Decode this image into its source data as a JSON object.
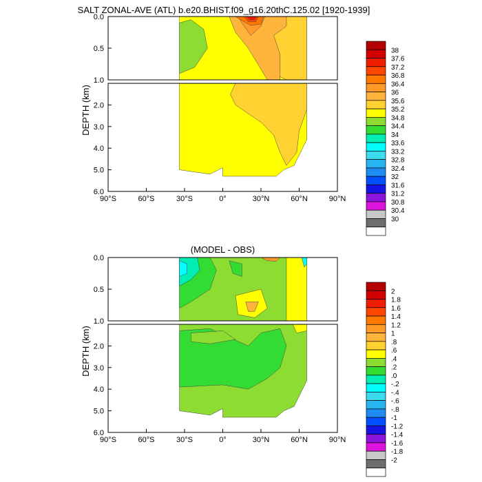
{
  "figure": {
    "title": "SALT ZONAL-AVE (ATL) b.e20.BHIST.f09_g16.20thC.125.02 [1920-1939]"
  },
  "chart_data": [
    {
      "type": "heatmap",
      "name": "model-salinity",
      "title": "SALT ZONAL-AVE (ATL) b.e20.BHIST.f09_g16.20thC.125.02 [1920-1939]",
      "xlabel": "",
      "ylabel": "DEPTH (km)",
      "xlim": [
        -90,
        90
      ],
      "x_ticks": [
        "90°S",
        "60°S",
        "30°S",
        "0°",
        "30°N",
        "60°N",
        "90°N"
      ],
      "upper_panel": {
        "ylim": [
          0.0,
          1.0
        ],
        "y_ticks": [
          "0.0",
          "0.5",
          "1.0"
        ],
        "reversed": true
      },
      "lower_panel": {
        "ylim": [
          1.0,
          6.0
        ],
        "y_ticks": [
          "2.0",
          "3.0",
          "4.0",
          "5.0",
          "6.0"
        ],
        "reversed": true
      },
      "data_extent": {
        "lat_min": -34,
        "lat_max": 66
      },
      "colorbar": {
        "labels": [
          "38",
          "37.6",
          "37.2",
          "36.8",
          "36.4",
          "36",
          "35.6",
          "35.2",
          "34.8",
          "34.4",
          "34",
          "33.6",
          "33.2",
          "32.8",
          "32.4",
          "32",
          "31.6",
          "31.2",
          "30.8",
          "30.4",
          "30"
        ],
        "colors": [
          "#b40000",
          "#d20000",
          "#f01e00",
          "#ff4600",
          "#ff7800",
          "#ff9a28",
          "#ffb43c",
          "#ffd232",
          "#ffff00",
          "#8cdc32",
          "#32dc32",
          "#00eeb4",
          "#00ffff",
          "#3cdcf0",
          "#28b4f0",
          "#1e8cf0",
          "#0050ff",
          "#1414e6",
          "#8c14dc",
          "#dc14dc",
          "#c8c8c8",
          "#6e6e6e",
          "#ffffff"
        ]
      },
      "regions": [
        {
          "level": 35.0,
          "pts": [
            [
              -34,
              0
            ],
            [
              66,
              0
            ],
            [
              66,
              1
            ],
            [
              -34,
              1
            ]
          ]
        },
        {
          "level": 34.6,
          "pts": [
            [
              -34,
              0.1
            ],
            [
              -25,
              0.05
            ],
            [
              -15,
              0.2
            ],
            [
              -12,
              0.5
            ],
            [
              -22,
              0.8
            ],
            [
              -34,
              0.9
            ]
          ]
        },
        {
          "level": 35.4,
          "pts": [
            [
              -22,
              0
            ],
            [
              20,
              0
            ],
            [
              25,
              0.4
            ],
            [
              40,
              0.9
            ],
            [
              50,
              1
            ],
            [
              66,
              1
            ],
            [
              66,
              0
            ],
            [
              -22,
              0
            ]
          ]
        },
        {
          "level": 35.8,
          "pts": [
            [
              -18,
              0
            ],
            [
              5,
              0
            ],
            [
              10,
              0.25
            ],
            [
              20,
              0.5
            ],
            [
              35,
              1
            ],
            [
              45,
              1
            ],
            [
              45,
              0.6
            ],
            [
              40,
              0.3
            ],
            [
              50,
              0.15
            ],
            [
              50,
              0
            ],
            [
              -18,
              0
            ]
          ]
        },
        {
          "level": 36.2,
          "pts": [
            [
              -12,
              0
            ],
            [
              12,
              0
            ],
            [
              15,
              0.1
            ],
            [
              22,
              0.3
            ],
            [
              30,
              0.15
            ],
            [
              33,
              0
            ],
            [
              -12,
              0
            ]
          ]
        },
        {
          "level": 36.6,
          "pts": [
            [
              10,
              0
            ],
            [
              32,
              0
            ],
            [
              30,
              0.12
            ],
            [
              22,
              0.14
            ],
            [
              14,
              0.05
            ]
          ]
        },
        {
          "level": 37.0,
          "pts": [
            [
              17,
              0
            ],
            [
              28,
              0
            ],
            [
              26,
              0.08
            ],
            [
              20,
              0.08
            ]
          ]
        },
        {
          "level": 37.4,
          "pts": [
            [
              19,
              0
            ],
            [
              26,
              0
            ],
            [
              25,
              0.05
            ],
            [
              21,
              0.05
            ]
          ]
        }
      ],
      "regions_deep": [
        {
          "level": 35.0,
          "pts": [
            [
              -34,
              1
            ],
            [
              66,
              1
            ],
            [
              66,
              3.6
            ],
            [
              56,
              4.8
            ],
            [
              48,
              5.0
            ],
            [
              42,
              5.3
            ],
            [
              0,
              5.3
            ],
            [
              0,
              4.9
            ],
            [
              -10,
              5.2
            ],
            [
              -34,
              5.0
            ]
          ]
        },
        {
          "level": 35.4,
          "pts": [
            [
              10,
              1
            ],
            [
              66,
              1
            ],
            [
              66,
              2.2
            ],
            [
              60,
              3.2
            ],
            [
              58,
              4.2
            ],
            [
              50,
              4.8
            ],
            [
              45,
              4.2
            ],
            [
              40,
              3.4
            ],
            [
              30,
              2.8
            ],
            [
              20,
              2.4
            ],
            [
              10,
              2.0
            ],
            [
              6,
              1.5
            ]
          ]
        }
      ]
    },
    {
      "type": "heatmap",
      "name": "model-minus-obs",
      "title": "(MODEL - OBS)",
      "xlabel": "",
      "ylabel": "DEPTH (km)",
      "xlim": [
        -90,
        90
      ],
      "x_ticks": [
        "90°S",
        "60°S",
        "30°S",
        "0°",
        "30°N",
        "60°N",
        "90°N"
      ],
      "upper_panel": {
        "ylim": [
          0.0,
          1.0
        ],
        "y_ticks": [
          "0.0",
          "0.5",
          "1.0"
        ],
        "reversed": true
      },
      "lower_panel": {
        "ylim": [
          1.0,
          6.0
        ],
        "y_ticks": [
          "2.0",
          "3.0",
          "4.0",
          "5.0",
          "6.0"
        ],
        "reversed": true
      },
      "data_extent": {
        "lat_min": -34,
        "lat_max": 66
      },
      "colorbar": {
        "labels": [
          "2",
          "1.8",
          "1.6",
          "1.4",
          "1.2",
          "1",
          ".8",
          ".6",
          ".4",
          ".2",
          ".0",
          "-.2",
          "-.4",
          "-.6",
          "-.8",
          "-1",
          "-1.2",
          "-1.4",
          "-1.6",
          "-1.8",
          "-2"
        ],
        "colors": [
          "#b40000",
          "#d20000",
          "#f01e00",
          "#ff4600",
          "#ff7800",
          "#ff9a28",
          "#ffb43c",
          "#ffd232",
          "#ffff00",
          "#8cdc32",
          "#32dc32",
          "#00eeb4",
          "#00ffff",
          "#3cdcf0",
          "#28b4f0",
          "#1e8cf0",
          "#0050ff",
          "#1414e6",
          "#8c14dc",
          "#dc14dc",
          "#c8c8c8",
          "#6e6e6e",
          "#ffffff"
        ]
      },
      "regions": [
        {
          "level": 0.3,
          "pts": [
            [
              -34,
              0
            ],
            [
              66,
              0
            ],
            [
              66,
              1
            ],
            [
              -34,
              1
            ]
          ]
        },
        {
          "level": 0.1,
          "pts": [
            [
              -34,
              0
            ],
            [
              -10,
              0
            ],
            [
              -5,
              0.2
            ],
            [
              -10,
              0.5
            ],
            [
              -25,
              0.7
            ],
            [
              -34,
              0.8
            ]
          ]
        },
        {
          "level": -0.1,
          "pts": [
            [
              -34,
              0
            ],
            [
              -20,
              0
            ],
            [
              -18,
              0.2
            ],
            [
              -25,
              0.35
            ],
            [
              -34,
              0.45
            ]
          ]
        },
        {
          "level": -0.4,
          "pts": [
            [
              -34,
              0.05
            ],
            [
              -28,
              0.1
            ],
            [
              -28,
              0.25
            ],
            [
              -34,
              0.3
            ]
          ]
        },
        {
          "level": 0.1,
          "pts": [
            [
              5,
              0.05
            ],
            [
              15,
              0.1
            ],
            [
              15,
              0.3
            ],
            [
              8,
              0.25
            ]
          ]
        },
        {
          "level": 0.5,
          "pts": [
            [
              50,
              0
            ],
            [
              66,
              0
            ],
            [
              66,
              1
            ],
            [
              50,
              1
            ]
          ]
        },
        {
          "level": 0.5,
          "pts": [
            [
              10,
              0.6
            ],
            [
              30,
              0.5
            ],
            [
              35,
              0.8
            ],
            [
              25,
              0.95
            ],
            [
              12,
              0.9
            ]
          ]
        },
        {
          "level": 0.9,
          "pts": [
            [
              18,
              0.7
            ],
            [
              28,
              0.7
            ],
            [
              25,
              0.85
            ],
            [
              20,
              0.85
            ]
          ]
        },
        {
          "level": 1.1,
          "pts": [
            [
              30,
              0
            ],
            [
              45,
              0
            ],
            [
              42,
              0.06
            ],
            [
              35,
              0.05
            ]
          ]
        },
        {
          "level": -0.3,
          "pts": [
            [
              62,
              0
            ],
            [
              66,
              0
            ],
            [
              66,
              0.1
            ],
            [
              64,
              0.15
            ]
          ]
        }
      ],
      "regions_deep": [
        {
          "level": 0.3,
          "pts": [
            [
              -34,
              1
            ],
            [
              66,
              1
            ],
            [
              66,
              3.6
            ],
            [
              56,
              4.8
            ],
            [
              48,
              5.0
            ],
            [
              42,
              5.3
            ],
            [
              0,
              5.3
            ],
            [
              0,
              4.9
            ],
            [
              -10,
              5.2
            ],
            [
              -34,
              5.0
            ]
          ]
        },
        {
          "level": 0.1,
          "pts": [
            [
              -34,
              1.3
            ],
            [
              -10,
              1.2
            ],
            [
              5,
              1.6
            ],
            [
              20,
              2.0
            ],
            [
              30,
              1.4
            ],
            [
              45,
              1.2
            ],
            [
              50,
              2
            ],
            [
              45,
              3
            ],
            [
              35,
              3.5
            ],
            [
              20,
              4
            ],
            [
              0,
              3.8
            ],
            [
              -34,
              3.9
            ]
          ]
        },
        {
          "level": 0.3,
          "pts": [
            [
              -25,
              1.4
            ],
            [
              0,
              1.3
            ],
            [
              10,
              1.7
            ],
            [
              -10,
              1.9
            ],
            [
              -25,
              1.8
            ]
          ]
        },
        {
          "level": 0.5,
          "pts": [
            [
              55,
              1
            ],
            [
              66,
              1
            ],
            [
              66,
              1.3
            ],
            [
              58,
              1.4
            ]
          ]
        }
      ]
    }
  ]
}
